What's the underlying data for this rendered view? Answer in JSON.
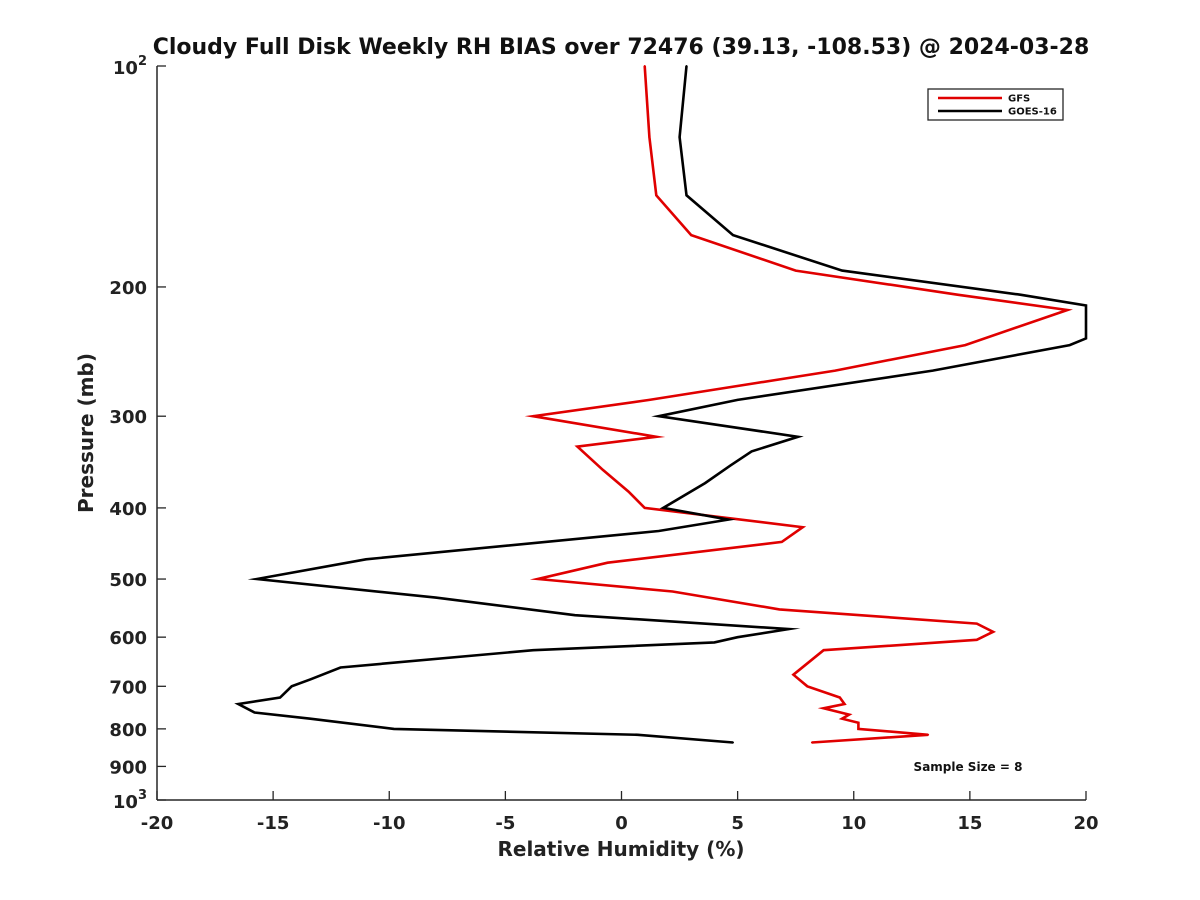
{
  "chart_data": {
    "type": "line",
    "title": "Cloudy Full Disk Weekly RH BIAS over 72476 (39.13, -108.53) @ 2024-03-28",
    "xlabel": "Relative Humidity (%)",
    "ylabel": "Pressure (mb)",
    "xlim": [
      -20,
      20
    ],
    "ylim": [
      100,
      1000
    ],
    "y_scale": "log",
    "y_reversed": true,
    "x_ticks": [
      "-20",
      "-15",
      "-10",
      "-5",
      "0",
      "5",
      "10",
      "15",
      "20"
    ],
    "y_ticks": [
      {
        "value": 100,
        "base": "10",
        "exp": "2"
      },
      {
        "value": 200,
        "label": "200"
      },
      {
        "value": 300,
        "label": "300"
      },
      {
        "value": 400,
        "label": "400"
      },
      {
        "value": 500,
        "label": "500"
      },
      {
        "value": 600,
        "label": "600"
      },
      {
        "value": 700,
        "label": "700"
      },
      {
        "value": 800,
        "label": "800"
      },
      {
        "value": 900,
        "label": "900"
      },
      {
        "value": 1000,
        "base": "10",
        "exp": "3"
      }
    ],
    "legend_position": "top-right",
    "annotation": "Sample Size = 8",
    "series": [
      {
        "name": "GFS",
        "color": "#e00000",
        "points": [
          [
            1.0,
            100
          ],
          [
            1.2,
            125
          ],
          [
            1.5,
            150
          ],
          [
            3.0,
            170
          ],
          [
            7.5,
            190
          ],
          [
            14.5,
            205
          ],
          [
            19.2,
            215
          ],
          [
            14.8,
            240
          ],
          [
            9.2,
            260
          ],
          [
            1.2,
            285
          ],
          [
            -3.8,
            300
          ],
          [
            1.5,
            320
          ],
          [
            -1.9,
            330
          ],
          [
            -0.8,
            355
          ],
          [
            0.3,
            380
          ],
          [
            1.0,
            400
          ],
          [
            7.8,
            425
          ],
          [
            6.9,
            445
          ],
          [
            -0.6,
            475
          ],
          [
            -3.6,
            500
          ],
          [
            2.2,
            520
          ],
          [
            6.8,
            550
          ],
          [
            15.3,
            575
          ],
          [
            16.0,
            590
          ],
          [
            15.3,
            605
          ],
          [
            8.7,
            625
          ],
          [
            7.4,
            675
          ],
          [
            8.0,
            700
          ],
          [
            9.4,
            725
          ],
          [
            9.6,
            740
          ],
          [
            8.7,
            750
          ],
          [
            9.8,
            765
          ],
          [
            9.5,
            775
          ],
          [
            10.2,
            785
          ],
          [
            10.2,
            800
          ],
          [
            13.2,
            815
          ],
          [
            8.2,
            835
          ]
        ]
      },
      {
        "name": "GOES-16",
        "color": "#000000",
        "points": [
          [
            2.8,
            100
          ],
          [
            2.5,
            125
          ],
          [
            2.8,
            150
          ],
          [
            4.8,
            170
          ],
          [
            9.5,
            190
          ],
          [
            17.2,
            205
          ],
          [
            20.0,
            212
          ],
          [
            20.0,
            235
          ],
          [
            19.3,
            240
          ],
          [
            13.4,
            260
          ],
          [
            5.0,
            285
          ],
          [
            1.6,
            300
          ],
          [
            7.6,
            320
          ],
          [
            5.6,
            335
          ],
          [
            4.7,
            350
          ],
          [
            3.6,
            370
          ],
          [
            1.8,
            400
          ],
          [
            4.6,
            415
          ],
          [
            1.6,
            430
          ],
          [
            -11.0,
            470
          ],
          [
            -15.7,
            500
          ],
          [
            -8.0,
            530
          ],
          [
            -2.0,
            560
          ],
          [
            7.2,
            585
          ],
          [
            5.0,
            600
          ],
          [
            4.0,
            610
          ],
          [
            -3.8,
            625
          ],
          [
            -12.1,
            660
          ],
          [
            -13.4,
            685
          ],
          [
            -14.2,
            700
          ],
          [
            -14.7,
            725
          ],
          [
            -16.5,
            740
          ],
          [
            -15.8,
            760
          ],
          [
            -13.4,
            775
          ],
          [
            -9.8,
            800
          ],
          [
            0.7,
            815
          ],
          [
            4.8,
            835
          ]
        ]
      }
    ]
  }
}
